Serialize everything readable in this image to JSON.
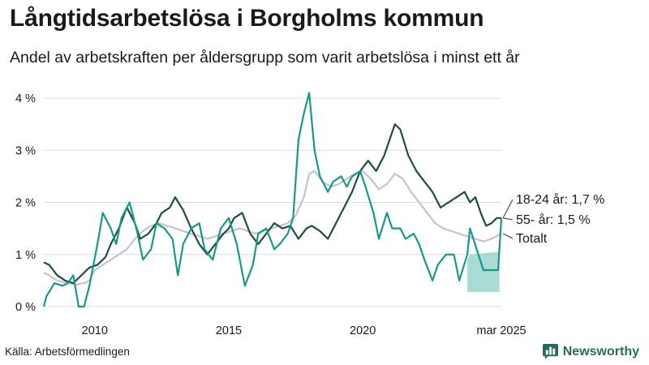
{
  "header": {
    "title": "Långtidsarbetslösa i Borgholms kommun",
    "subtitle": "Andel av arbetskraften per åldersgrupp som varit arbetslösa i minst ett år"
  },
  "footer": {
    "source": "Källa: Arbetsförmedlingen",
    "brand": "Newsworthy"
  },
  "colors": {
    "age_18_24": "#17998a",
    "age_55": "#1f4d42",
    "total": "#c6c2cf",
    "uncertainty": "#8fd0c6",
    "grid": "#dcdcdc"
  },
  "icons": {
    "brand_logo": "bar-chart-speech-icon"
  },
  "chart_data": {
    "type": "line",
    "title": "Långtidsarbetslösa i Borgholms kommun",
    "subtitle": "Andel av arbetskraften per åldersgrupp som varit arbetslösa i minst ett år",
    "x_ticks": [
      {
        "year": 2010,
        "label": "2010"
      },
      {
        "year": 2015,
        "label": "2015"
      },
      {
        "year": 2020,
        "label": "2020"
      },
      {
        "year": 2025.17,
        "label": "mar 2025"
      }
    ],
    "y_ticks": [
      {
        "value": 0,
        "label": "0 %"
      },
      {
        "value": 1,
        "label": "1 %"
      },
      {
        "value": 2,
        "label": "2 %"
      },
      {
        "value": 3,
        "label": "3 %"
      },
      {
        "value": 4,
        "label": "4 %"
      }
    ],
    "xlim": [
      2008.1,
      2025.17
    ],
    "ylim": [
      0,
      4.2
    ],
    "grid": "horizontal",
    "end_labels": [
      {
        "series": "18-24 år",
        "text": "18-24 år: 1,7 %"
      },
      {
        "series": "55- år",
        "text": "55- år: 1,5 %"
      },
      {
        "series": "Totalt",
        "text": "Totalt"
      }
    ],
    "uncertainty_band": {
      "series": "18-24 år",
      "x": [
        2023.9,
        2024.0,
        2025.05,
        2025.1
      ],
      "lower": [
        0.28,
        0.28,
        0.28,
        0.28
      ],
      "upper": [
        0.9,
        1.0,
        1.05,
        1.2
      ]
    },
    "series": [
      {
        "name": "Totalt",
        "x": [
          2008.1,
          2008.3,
          2008.6,
          2009.0,
          2009.3,
          2009.6,
          2009.8,
          2010.0,
          2010.3,
          2010.6,
          2010.9,
          2011.2,
          2011.5,
          2011.8,
          2012.1,
          2012.4,
          2012.7,
          2013.0,
          2013.3,
          2013.6,
          2013.9,
          2014.2,
          2014.5,
          2014.8,
          2015.1,
          2015.4,
          2015.7,
          2016.0,
          2016.3,
          2016.6,
          2016.9,
          2017.2,
          2017.5,
          2017.8,
          2018.0,
          2018.2,
          2018.5,
          2018.8,
          2019.1,
          2019.4,
          2019.7,
          2020.0,
          2020.3,
          2020.6,
          2020.9,
          2021.2,
          2021.5,
          2021.8,
          2022.1,
          2022.4,
          2022.7,
          2023.0,
          2023.3,
          2023.6,
          2023.9,
          2024.2,
          2024.5,
          2024.8,
          2025.17
        ],
        "values": [
          0.65,
          0.6,
          0.5,
          0.45,
          0.42,
          0.45,
          0.5,
          0.7,
          0.8,
          0.9,
          1.0,
          1.1,
          1.3,
          1.45,
          1.55,
          1.6,
          1.55,
          1.5,
          1.45,
          1.4,
          1.35,
          1.3,
          1.35,
          1.4,
          1.45,
          1.5,
          1.45,
          1.4,
          1.45,
          1.5,
          1.55,
          1.6,
          1.75,
          2.1,
          2.55,
          2.6,
          2.4,
          2.3,
          2.35,
          2.45,
          2.55,
          2.6,
          2.45,
          2.25,
          2.35,
          2.55,
          2.45,
          2.2,
          2.0,
          1.8,
          1.6,
          1.5,
          1.45,
          1.4,
          1.35,
          1.3,
          1.25,
          1.3,
          1.4
        ]
      },
      {
        "name": "55- år",
        "x": [
          2008.1,
          2008.3,
          2008.6,
          2008.9,
          2009.2,
          2009.5,
          2009.8,
          2010.1,
          2010.4,
          2010.6,
          2010.9,
          2011.2,
          2011.5,
          2011.7,
          2012.0,
          2012.3,
          2012.5,
          2012.8,
          2013.0,
          2013.3,
          2013.6,
          2013.9,
          2014.2,
          2014.5,
          2014.8,
          2015.0,
          2015.2,
          2015.5,
          2015.8,
          2016.1,
          2016.4,
          2016.7,
          2017.0,
          2017.3,
          2017.6,
          2017.9,
          2018.1,
          2018.4,
          2018.7,
          2019.0,
          2019.3,
          2019.6,
          2019.9,
          2020.2,
          2020.5,
          2020.8,
          2021.0,
          2021.2,
          2021.4,
          2021.7,
          2022.0,
          2022.3,
          2022.6,
          2022.9,
          2023.2,
          2023.5,
          2023.8,
          2024.0,
          2024.2,
          2024.4,
          2024.6,
          2024.8,
          2025.0,
          2025.17
        ],
        "values": [
          0.85,
          0.8,
          0.6,
          0.5,
          0.45,
          0.6,
          0.75,
          0.8,
          0.95,
          1.2,
          1.5,
          1.9,
          1.6,
          1.3,
          1.4,
          1.6,
          1.8,
          1.9,
          2.1,
          1.85,
          1.5,
          1.2,
          1.0,
          1.2,
          1.4,
          1.5,
          1.7,
          1.8,
          1.4,
          1.2,
          1.4,
          1.6,
          1.5,
          1.55,
          1.3,
          1.5,
          1.55,
          1.45,
          1.3,
          1.6,
          1.9,
          2.2,
          2.6,
          2.8,
          2.6,
          2.9,
          3.2,
          3.5,
          3.4,
          2.9,
          2.6,
          2.4,
          2.2,
          1.9,
          2.0,
          2.1,
          2.2,
          2.0,
          2.1,
          1.8,
          1.55,
          1.6,
          1.7,
          1.7
        ]
      },
      {
        "name": "18-24 år",
        "x": [
          2008.1,
          2008.2,
          2008.5,
          2008.8,
          2009.0,
          2009.2,
          2009.4,
          2009.6,
          2009.8,
          2010.1,
          2010.3,
          2010.6,
          2010.8,
          2011.0,
          2011.3,
          2011.6,
          2011.8,
          2012.1,
          2012.3,
          2012.6,
          2012.9,
          2013.1,
          2013.3,
          2013.6,
          2013.9,
          2014.1,
          2014.4,
          2014.7,
          2015.0,
          2015.3,
          2015.6,
          2015.9,
          2016.1,
          2016.4,
          2016.7,
          2016.9,
          2017.2,
          2017.4,
          2017.6,
          2017.8,
          2018.0,
          2018.2,
          2018.4,
          2018.7,
          2018.9,
          2019.2,
          2019.4,
          2019.6,
          2019.9,
          2020.1,
          2020.4,
          2020.6,
          2020.9,
          2021.1,
          2021.4,
          2021.6,
          2021.9,
          2022.1,
          2022.3,
          2022.6,
          2022.8,
          2023.1,
          2023.4,
          2023.6,
          2023.9,
          2024.0,
          2024.5,
          2025.05,
          2025.17
        ],
        "values": [
          0.0,
          0.2,
          0.45,
          0.4,
          0.45,
          0.6,
          0.0,
          0.0,
          0.4,
          1.2,
          1.8,
          1.5,
          1.2,
          1.7,
          2.0,
          1.4,
          0.9,
          1.1,
          1.6,
          1.5,
          1.3,
          0.6,
          1.2,
          1.5,
          1.6,
          1.1,
          0.9,
          1.5,
          1.7,
          1.2,
          0.4,
          0.8,
          1.4,
          1.5,
          1.1,
          1.2,
          1.4,
          1.7,
          3.2,
          3.7,
          4.1,
          3.0,
          2.5,
          2.2,
          2.4,
          2.5,
          2.3,
          2.5,
          2.6,
          2.3,
          1.8,
          1.3,
          1.8,
          1.5,
          1.5,
          1.3,
          1.4,
          1.2,
          0.9,
          0.5,
          0.8,
          1.0,
          1.0,
          0.5,
          1.0,
          1.5,
          0.7,
          0.7,
          1.7
        ]
      }
    ]
  }
}
